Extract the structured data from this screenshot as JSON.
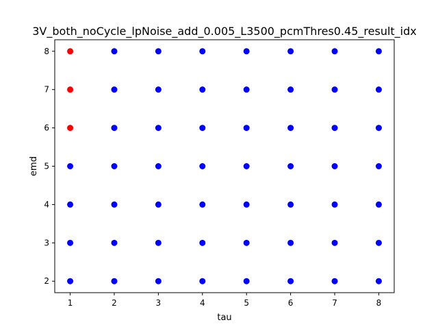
{
  "chart_data": {
    "type": "scatter",
    "title": "3V_both_noCycle_lpNoise_add_0.005_L3500_pcmThres0.45_result_idx",
    "xlabel": "tau",
    "ylabel": "emd",
    "xlim": [
      0.65,
      8.35
    ],
    "ylim": [
      1.7,
      8.3
    ],
    "xticks": [
      1,
      2,
      3,
      4,
      5,
      6,
      7,
      8
    ],
    "yticks": [
      2,
      3,
      4,
      5,
      6,
      7,
      8
    ],
    "grid": false,
    "legend": null,
    "colors": {
      "blue": "#0000ff",
      "red": "#ff0000"
    },
    "series": [
      {
        "color": "#0000ff",
        "points": [
          [
            1,
            2
          ],
          [
            1,
            3
          ],
          [
            1,
            4
          ],
          [
            1,
            5
          ],
          [
            2,
            2
          ],
          [
            2,
            3
          ],
          [
            2,
            4
          ],
          [
            2,
            5
          ],
          [
            2,
            6
          ],
          [
            2,
            7
          ],
          [
            2,
            8
          ],
          [
            3,
            2
          ],
          [
            3,
            3
          ],
          [
            3,
            4
          ],
          [
            3,
            5
          ],
          [
            3,
            6
          ],
          [
            3,
            7
          ],
          [
            3,
            8
          ],
          [
            4,
            2
          ],
          [
            4,
            3
          ],
          [
            4,
            4
          ],
          [
            4,
            5
          ],
          [
            4,
            6
          ],
          [
            4,
            7
          ],
          [
            4,
            8
          ],
          [
            5,
            2
          ],
          [
            5,
            3
          ],
          [
            5,
            4
          ],
          [
            5,
            5
          ],
          [
            5,
            6
          ],
          [
            5,
            7
          ],
          [
            5,
            8
          ],
          [
            6,
            2
          ],
          [
            6,
            3
          ],
          [
            6,
            4
          ],
          [
            6,
            5
          ],
          [
            6,
            6
          ],
          [
            6,
            7
          ],
          [
            6,
            8
          ],
          [
            7,
            2
          ],
          [
            7,
            3
          ],
          [
            7,
            4
          ],
          [
            7,
            5
          ],
          [
            7,
            6
          ],
          [
            7,
            7
          ],
          [
            7,
            8
          ],
          [
            8,
            2
          ],
          [
            8,
            3
          ],
          [
            8,
            4
          ],
          [
            8,
            5
          ],
          [
            8,
            6
          ],
          [
            8,
            7
          ],
          [
            8,
            8
          ]
        ]
      },
      {
        "color": "#ff0000",
        "points": [
          [
            1,
            6
          ],
          [
            1,
            7
          ],
          [
            1,
            8
          ]
        ]
      }
    ]
  }
}
